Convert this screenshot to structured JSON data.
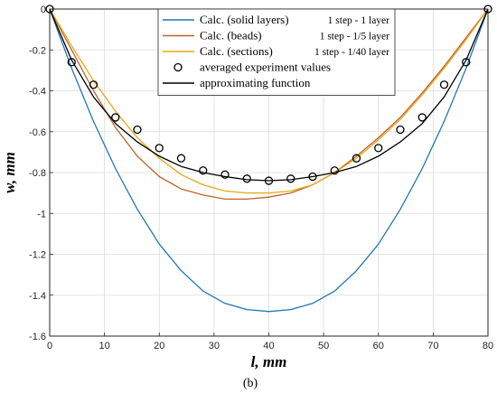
{
  "chart_data": {
    "type": "line",
    "title": "",
    "xlabel": "l, mm",
    "ylabel": "w, mm",
    "caption": "(b)",
    "xlim": [
      0,
      80
    ],
    "ylim": [
      -1.6,
      0
    ],
    "grid": true,
    "legend_position": "top-center",
    "x_ticks": [
      "0",
      "10",
      "20",
      "30",
      "40",
      "50",
      "60",
      "70",
      "80"
    ],
    "y_ticks": [
      "0",
      "-0.2",
      "-0.4",
      "-0.6",
      "-0.8",
      "-1",
      "-1.2",
      "-1.4",
      "-1.6"
    ],
    "series": [
      {
        "name": "Calc. (solid layers)",
        "note": "1 step - 1 layer",
        "color": "#1f77b4",
        "x": [
          0,
          4,
          8,
          12,
          16,
          20,
          24,
          28,
          32,
          36,
          40,
          44,
          48,
          52,
          56,
          60,
          64,
          68,
          72,
          76,
          80
        ],
        "y": [
          0,
          -0.29,
          -0.55,
          -0.78,
          -0.98,
          -1.15,
          -1.28,
          -1.38,
          -1.44,
          -1.47,
          -1.48,
          -1.47,
          -1.44,
          -1.38,
          -1.28,
          -1.15,
          -0.98,
          -0.78,
          -0.55,
          -0.29,
          0
        ]
      },
      {
        "name": "Calc. (beads)",
        "note": "1 step - 1/5 layer",
        "color": "#c0622a",
        "x": [
          0,
          4,
          8,
          12,
          16,
          20,
          24,
          28,
          32,
          36,
          40,
          44,
          48,
          52,
          56,
          60,
          64,
          68,
          72,
          76,
          80
        ],
        "y": [
          0,
          -0.2,
          -0.4,
          -0.58,
          -0.72,
          -0.82,
          -0.88,
          -0.91,
          -0.93,
          -0.93,
          -0.92,
          -0.9,
          -0.86,
          -0.8,
          -0.72,
          -0.63,
          -0.53,
          -0.41,
          -0.28,
          -0.14,
          0
        ]
      },
      {
        "name": "Calc. (sections)",
        "note": "1 step - 1/40 layer",
        "color": "#e6a817",
        "x": [
          0,
          4,
          8,
          12,
          16,
          20,
          24,
          28,
          32,
          36,
          40,
          44,
          48,
          52,
          56,
          60,
          64,
          68,
          72,
          76,
          80
        ],
        "y": [
          0,
          -0.18,
          -0.35,
          -0.5,
          -0.63,
          -0.73,
          -0.81,
          -0.86,
          -0.89,
          -0.9,
          -0.9,
          -0.89,
          -0.86,
          -0.8,
          -0.73,
          -0.64,
          -0.54,
          -0.42,
          -0.29,
          -0.15,
          0
        ]
      },
      {
        "name": "averaged experiment values",
        "marker": "circle",
        "color": "#000000",
        "x": [
          0,
          4,
          8,
          12,
          16,
          20,
          24,
          28,
          32,
          36,
          40,
          44,
          48,
          52,
          56,
          60,
          64,
          68,
          72,
          76,
          80
        ],
        "y": [
          0,
          -0.26,
          -0.37,
          -0.53,
          -0.59,
          -0.68,
          -0.73,
          -0.79,
          -0.81,
          -0.83,
          -0.84,
          -0.83,
          -0.82,
          -0.79,
          -0.73,
          -0.68,
          -0.59,
          -0.53,
          -0.37,
          -0.26,
          0
        ]
      },
      {
        "name": "approximating function",
        "color": "#000000",
        "x": [
          0,
          4,
          8,
          12,
          16,
          20,
          24,
          28,
          32,
          36,
          40,
          44,
          48,
          52,
          56,
          60,
          64,
          68,
          72,
          76,
          80
        ],
        "y": [
          0,
          -0.25,
          -0.43,
          -0.56,
          -0.65,
          -0.72,
          -0.77,
          -0.8,
          -0.82,
          -0.835,
          -0.84,
          -0.835,
          -0.82,
          -0.8,
          -0.77,
          -0.72,
          -0.65,
          -0.56,
          -0.43,
          -0.25,
          0
        ]
      }
    ]
  }
}
